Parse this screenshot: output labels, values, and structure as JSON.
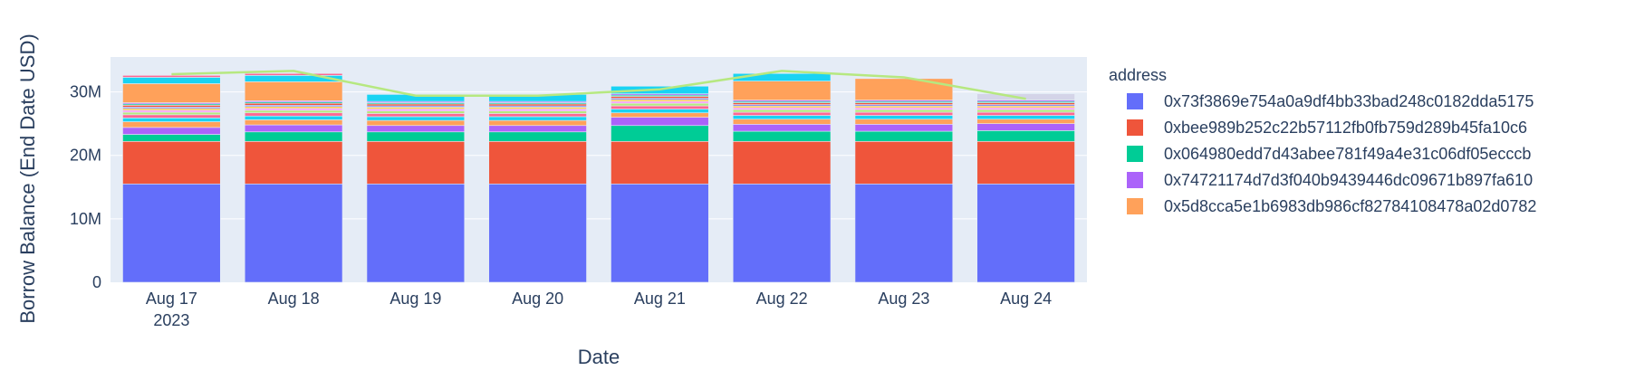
{
  "chart_data": {
    "type": "bar",
    "barmode": "stack",
    "xlabel": "Date",
    "ylabel": "Borrow Balance (End Date USD)",
    "ylim": [
      0,
      35.5
    ],
    "y_ticks": [
      {
        "value": 0,
        "label": "0"
      },
      {
        "value": 10,
        "label": "10M"
      },
      {
        "value": 20,
        "label": "20M"
      },
      {
        "value": 30,
        "label": "30M"
      }
    ],
    "categories": [
      "Aug 17",
      "Aug 18",
      "Aug 19",
      "Aug 20",
      "Aug 21",
      "Aug 22",
      "Aug 23",
      "Aug 24"
    ],
    "first_category_year": "2023",
    "legend_title": "address",
    "legend_position": "right",
    "series": [
      {
        "name": "0x73f3869e754a0a9df4bb33bad248c0182dda5175",
        "color": "#636efa",
        "values": [
          15.5,
          15.5,
          15.5,
          15.5,
          15.5,
          15.5,
          15.5,
          15.5
        ]
      },
      {
        "name": "0xbee989b252c22b57112fb0fb759d289b45fa10c6",
        "color": "#EF553B",
        "values": [
          6.7,
          6.7,
          6.7,
          6.7,
          6.7,
          6.7,
          6.7,
          6.7
        ]
      },
      {
        "name": "0x064980edd7d43abee781f49a4e31c06df05ecccb",
        "color": "#00cc96",
        "values": [
          1.1,
          1.5,
          1.5,
          1.5,
          2.5,
          1.6,
          1.6,
          1.7
        ]
      },
      {
        "name": "0x74721174d7d3f040b9439446dc09671b897fa610",
        "color": "#ab63fa",
        "values": [
          1.1,
          1.1,
          1.0,
          1.0,
          1.3,
          1.1,
          1.1,
          1.1
        ]
      },
      {
        "name": "0x5d8cca5e1b6983db986cf82784108478a02d0782",
        "color": "#FFA15A",
        "values": [
          0.9,
          0.8,
          0.8,
          0.8,
          0.7,
          0.8,
          0.8,
          0.7
        ]
      },
      {
        "name": "",
        "color": "#19d3f3",
        "values": [
          0.6,
          0.6,
          0.6,
          0.6,
          0.6,
          0.6,
          0.6,
          0.6
        ]
      },
      {
        "name": "",
        "color": "#FF6692",
        "values": [
          0.5,
          0.5,
          0.5,
          0.5,
          0.5,
          0.5,
          0.5,
          0.5
        ]
      },
      {
        "name": "",
        "color": "#B6E880",
        "values": [
          0.4,
          0.4,
          0.4,
          0.4,
          0.4,
          0.4,
          0.4,
          0.4
        ]
      },
      {
        "name": "",
        "color": "#FF97FF",
        "values": [
          0.3,
          0.3,
          0.3,
          0.3,
          0.3,
          0.3,
          0.3,
          0.3
        ]
      },
      {
        "name": "",
        "color": "#FECB52",
        "values": [
          0.3,
          0.3,
          0.3,
          0.3,
          0.3,
          0.3,
          0.3,
          0.3
        ]
      },
      {
        "name": "",
        "color": "#636efa",
        "values": [
          0.2,
          0.2,
          0.2,
          0.2,
          0.2,
          0.2,
          0.2,
          0.2
        ]
      },
      {
        "name": "",
        "color": "#EF553B",
        "values": [
          0.3,
          0.3,
          0.3,
          0.3,
          0.3,
          0.3,
          0.3,
          0.3
        ]
      },
      {
        "name": "",
        "color": "#00cc96",
        "values": [
          0.2,
          0.2,
          0.2,
          0.2,
          0.2,
          0.2,
          0.2,
          0.2
        ]
      },
      {
        "name": "",
        "color": "#ab63fa",
        "values": [
          0.2,
          0.2,
          0.2,
          0.2,
          0.2,
          0.2,
          0.2,
          0.2
        ]
      },
      {
        "name": "",
        "color": "#FFA15A",
        "values": [
          3.0,
          3.0,
          0.0,
          0.0,
          0.0,
          3.0,
          3.4,
          0.0
        ]
      },
      {
        "name": "",
        "color": "#19d3f3",
        "values": [
          1.0,
          1.0,
          1.1,
          1.1,
          1.2,
          1.2,
          0.0,
          0.0
        ]
      },
      {
        "name": "",
        "color": "#FF6692",
        "values": [
          0.3,
          0.3,
          0.0,
          0.0,
          0.0,
          0.0,
          0.0,
          0.0
        ]
      },
      {
        "name": "",
        "color": "#d4d4e8",
        "values": [
          0.0,
          0.0,
          0.0,
          0.0,
          0.0,
          0.0,
          0.0,
          1.0
        ]
      }
    ],
    "line_series": {
      "color": "#B6E880",
      "values": [
        32.8,
        33.3,
        29.4,
        29.4,
        30.4,
        33.3,
        32.3,
        28.9
      ]
    }
  }
}
